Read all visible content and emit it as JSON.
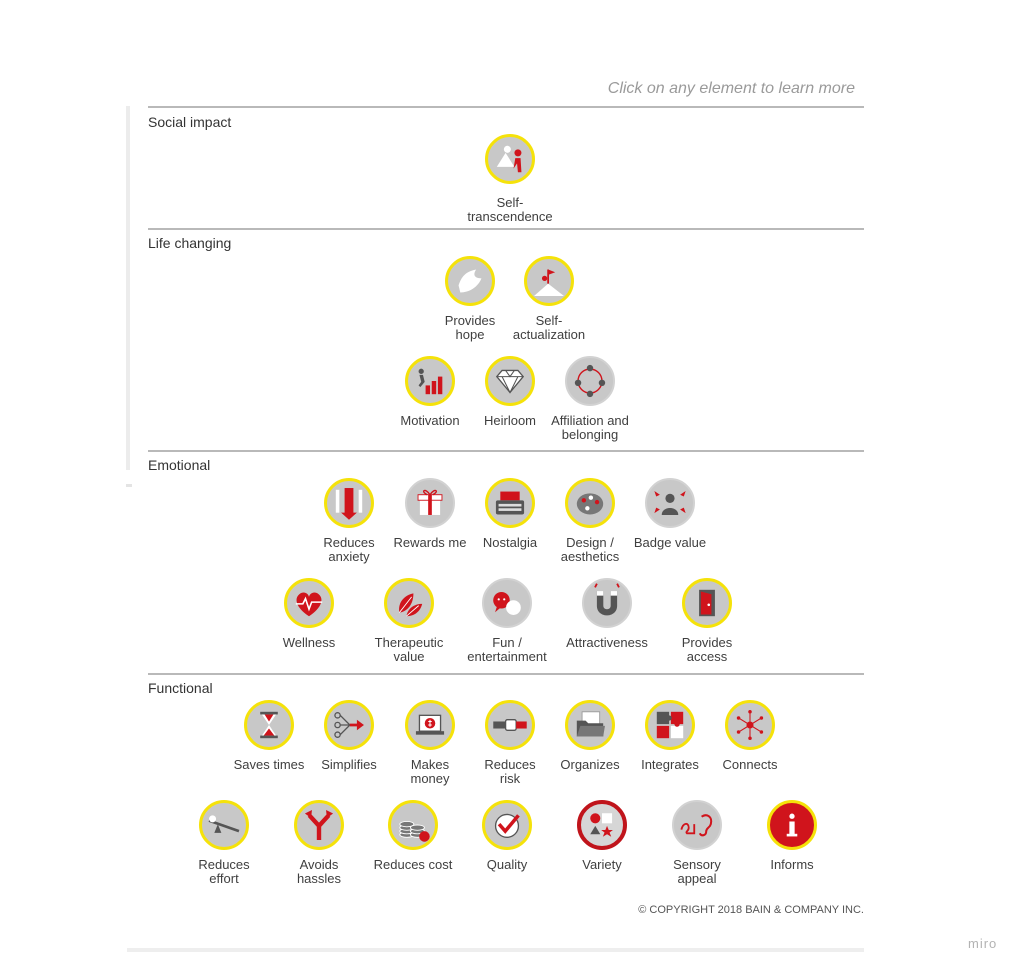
{
  "hint": "Click on any element to learn more",
  "sections": {
    "social": {
      "title": "Social impact"
    },
    "life": {
      "title": "Life changing"
    },
    "emotional": {
      "title": "Emotional"
    },
    "functional": {
      "title": "Functional"
    }
  },
  "elements": {
    "self_transcendence": {
      "label": "Self-\ntranscendence",
      "icon": "helping-hand-icon"
    },
    "provides_hope": {
      "label": "Provides\nhope",
      "icon": "dove-icon"
    },
    "self_actualization": {
      "label": "Self-\nactualization",
      "icon": "summit-flag-icon"
    },
    "motivation": {
      "label": "Motivation",
      "icon": "runner-bars-icon"
    },
    "heirloom": {
      "label": "Heirloom",
      "icon": "diamond-icon"
    },
    "affiliation": {
      "label": "Affiliation and\nbelonging",
      "icon": "people-circle-icon"
    },
    "reduces_anxiety": {
      "label": "Reduces\nanxiety",
      "icon": "down-arrows-icon"
    },
    "rewards_me": {
      "label": "Rewards me",
      "icon": "gift-icon"
    },
    "nostalgia": {
      "label": "Nostalgia",
      "icon": "typewriter-icon"
    },
    "design_aesthetics": {
      "label": "Design /\naesthetics",
      "icon": "palette-icon"
    },
    "badge_value": {
      "label": "Badge value",
      "icon": "person-arrows-icon"
    },
    "wellness": {
      "label": "Wellness",
      "icon": "heartbeat-icon"
    },
    "therapeutic_value": {
      "label": "Therapeutic\nvalue",
      "icon": "leaves-icon"
    },
    "fun_entertainment": {
      "label": "Fun /\nentertainment",
      "icon": "speech-bubbles-icon"
    },
    "attractiveness": {
      "label": "Attractiveness",
      "icon": "magnet-icon"
    },
    "provides_access": {
      "label": "Provides\naccess",
      "icon": "open-door-icon"
    },
    "saves_time": {
      "label": "Saves times",
      "icon": "hourglass-icon"
    },
    "simplifies": {
      "label": "Simplifies",
      "icon": "merge-arrows-icon"
    },
    "makes_money": {
      "label": "Makes\nmoney",
      "icon": "laptop-money-icon"
    },
    "reduces_risk": {
      "label": "Reduces\nrisk",
      "icon": "seatbelt-icon"
    },
    "organizes": {
      "label": "Organizes",
      "icon": "folder-icon"
    },
    "integrates": {
      "label": "Integrates",
      "icon": "puzzle-icon"
    },
    "connects": {
      "label": "Connects",
      "icon": "network-icon"
    },
    "reduces_effort": {
      "label": "Reduces\neffort",
      "icon": "lever-icon"
    },
    "avoids_hassles": {
      "label": "Avoids\nhassles",
      "icon": "split-arrows-icon"
    },
    "reduces_cost": {
      "label": "Reduces cost",
      "icon": "coins-icon"
    },
    "quality": {
      "label": "Quality",
      "icon": "checkmark-icon"
    },
    "variety": {
      "label": "Variety",
      "icon": "shapes-icon"
    },
    "sensory_appeal": {
      "label": "Sensory\nappeal",
      "icon": "ear-icon"
    },
    "informs": {
      "label": "Informs",
      "icon": "info-icon"
    }
  },
  "copyright": "© COPYRIGHT 2018 BAIN & COMPANY INC.",
  "watermark": "miro",
  "colors": {
    "accent_red": "#d0141c",
    "ring_yellow": "#f5e20a",
    "badge_gray": "#c8c8c8"
  }
}
